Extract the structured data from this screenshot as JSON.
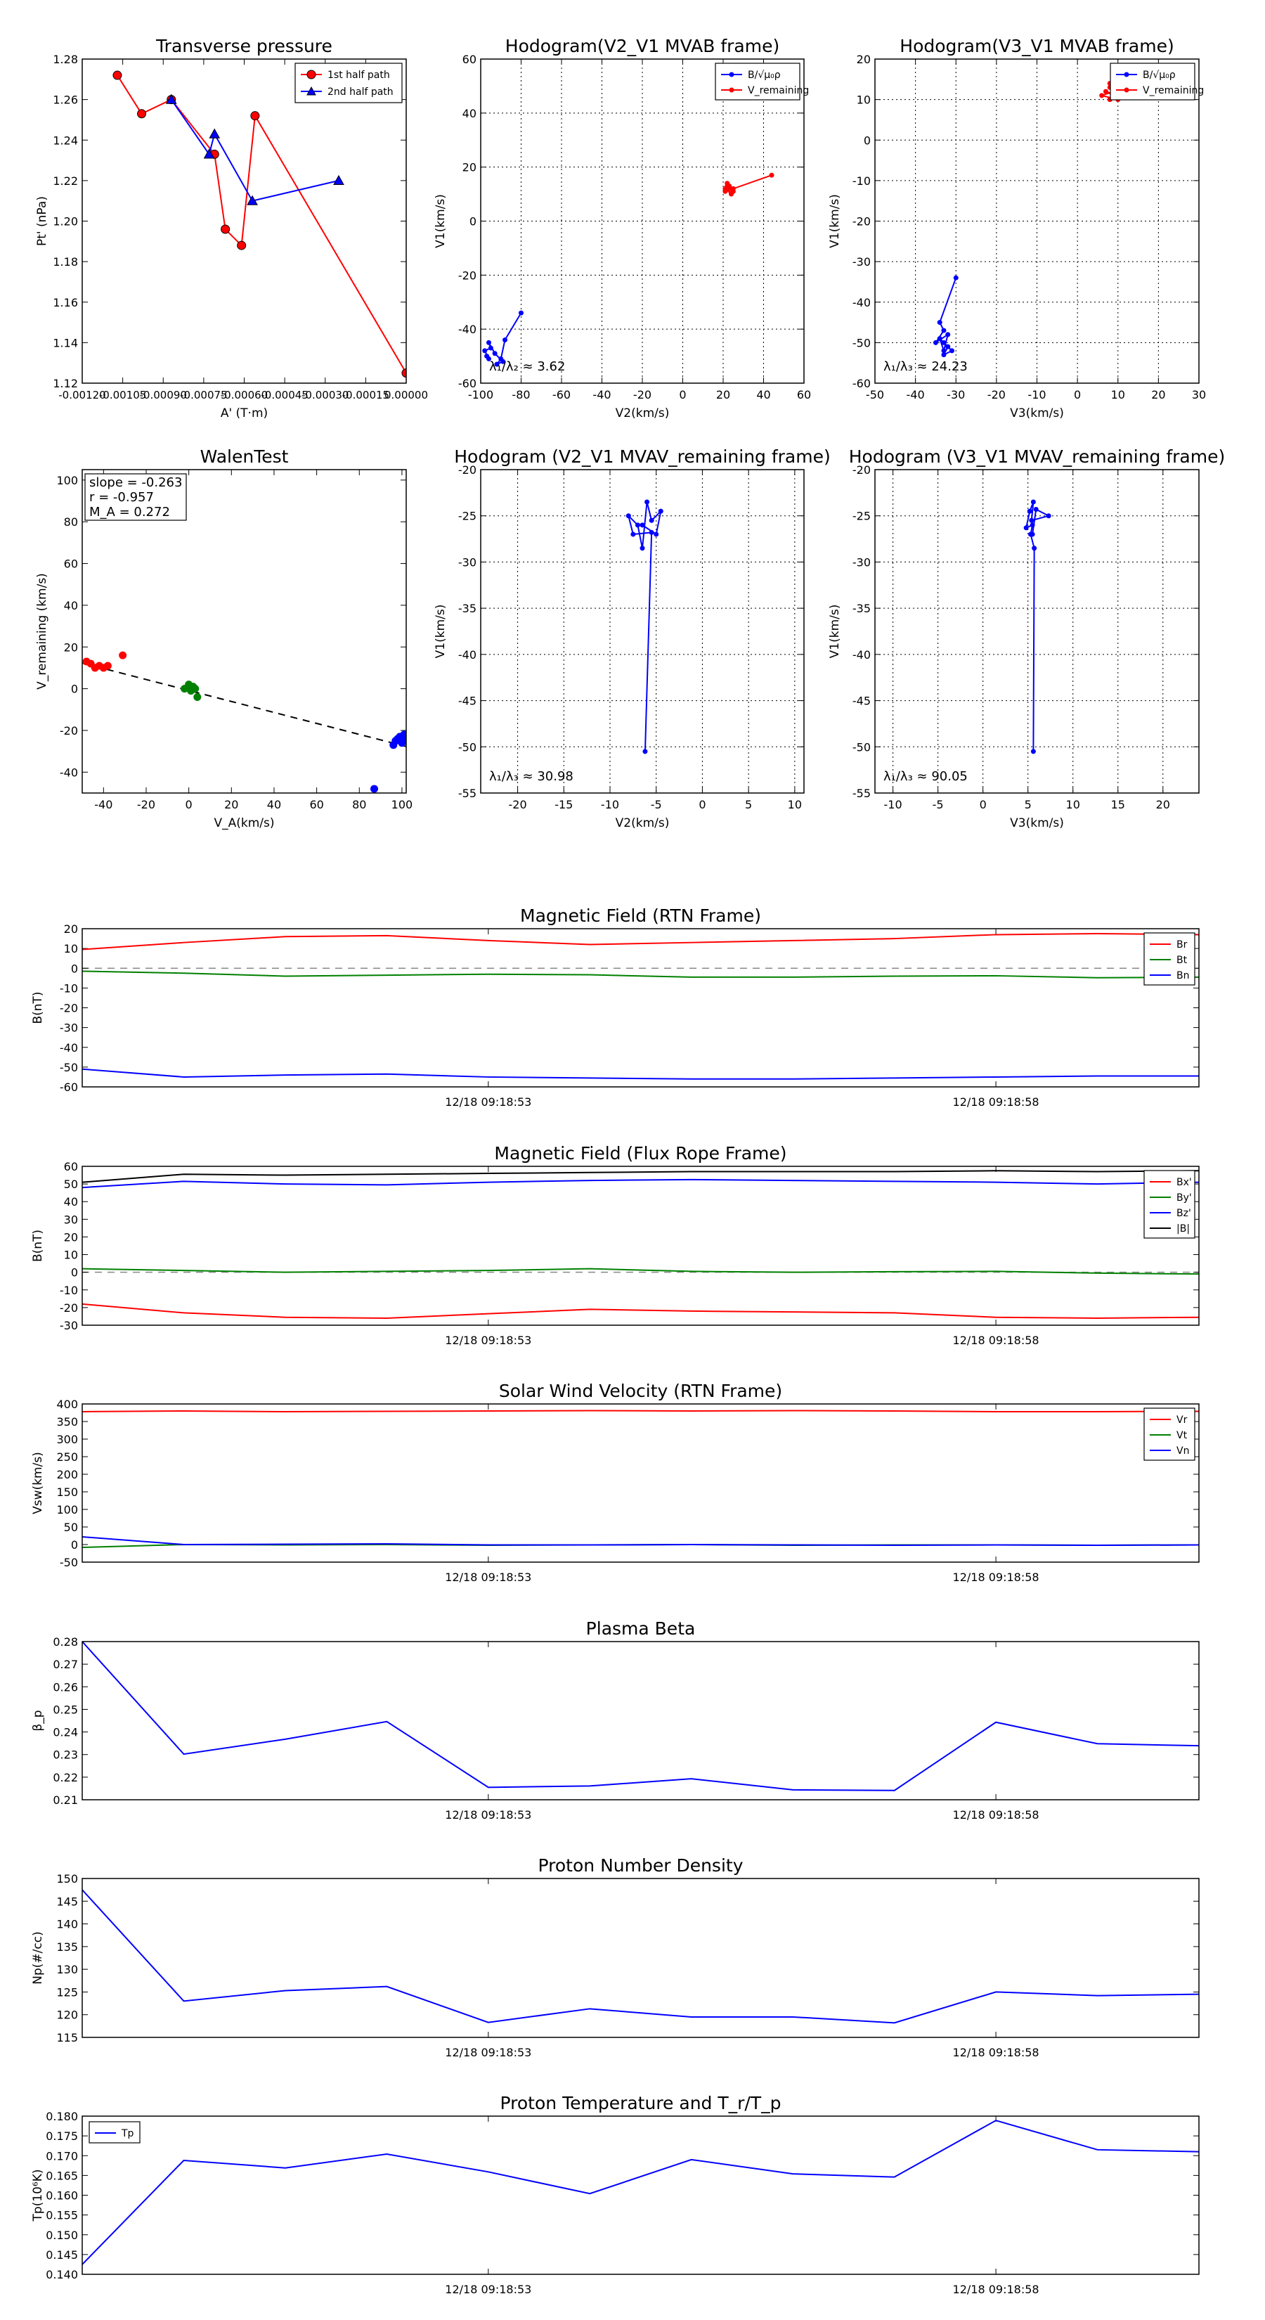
{
  "chart_data": [
    {
      "id": "transverse",
      "type": "line",
      "title": "Transverse pressure",
      "xlabel": "A' (T·m)",
      "ylabel": "Pt' (nPa)",
      "xlim": [
        -0.0012,
        0.0
      ],
      "ylim": [
        1.12,
        1.28
      ],
      "xticks": [
        -0.0012,
        -0.00105,
        -0.0009,
        -0.00075,
        -0.0006,
        -0.00045,
        -0.0003,
        -0.00015,
        0.0
      ],
      "xticklabels": [
        "-0.00120",
        "-0.00105",
        "-0.00090",
        "-0.00075",
        "-0.00060",
        "-0.00045",
        "-0.00030",
        "-0.00015",
        "0.00000"
      ],
      "yticks": [
        1.12,
        1.14,
        1.16,
        1.18,
        1.2,
        1.22,
        1.24,
        1.26,
        1.28
      ],
      "yticklabels": [
        "1.12",
        "1.14",
        "1.16",
        "1.18",
        "1.20",
        "1.22",
        "1.24",
        "1.26",
        "1.28"
      ],
      "grid": false,
      "legend_position": "top-right",
      "series": [
        {
          "name": "1st half path",
          "color": "#ff0000",
          "marker": "circle",
          "x": [
            -0.00107,
            -0.00098,
            -0.00087,
            -0.00071,
            -0.00067,
            -0.00061,
            -0.00056,
            0.0
          ],
          "y": [
            1.272,
            1.253,
            1.26,
            1.233,
            1.196,
            1.188,
            1.252,
            1.125
          ]
        },
        {
          "name": "2nd half path",
          "color": "#0000ff",
          "marker": "triangle",
          "x": [
            -0.00087,
            -0.00073,
            -0.00071,
            -0.00057,
            -0.00025
          ],
          "y": [
            1.26,
            1.233,
            1.243,
            1.21,
            1.22
          ]
        }
      ]
    },
    {
      "id": "hodo_v2v1",
      "type": "line",
      "title": "Hodogram(V2_V1 MVAB frame)",
      "xlabel": "V2(km/s)",
      "ylabel": "V1(km/s)",
      "xlim": [
        -100,
        60
      ],
      "ylim": [
        -60,
        60
      ],
      "xticks": [
        -100,
        -80,
        -60,
        -40,
        -20,
        0,
        20,
        40,
        60
      ],
      "yticks": [
        -60,
        -40,
        -20,
        0,
        20,
        40,
        60
      ],
      "grid": true,
      "legend_position": "top-right",
      "annotation": "λ₁/λ₂ ≈ 3.62",
      "series": [
        {
          "name": "B/√μ₀ρ",
          "color": "#0000ff",
          "x": [
            -80,
            -88,
            -90,
            -92,
            -89,
            -93,
            -96,
            -95,
            -98,
            -96,
            -97
          ],
          "y": [
            -34,
            -44,
            -51,
            -53,
            -52,
            -49,
            -45,
            -47,
            -48,
            -51,
            -50
          ]
        },
        {
          "name": "V_remaining",
          "color": "#ff0000",
          "x": [
            44,
            25,
            22,
            24,
            21,
            23,
            25,
            22,
            21,
            23
          ],
          "y": [
            17,
            12,
            14,
            10,
            12,
            13,
            11,
            13,
            11,
            12
          ]
        }
      ]
    },
    {
      "id": "hodo_v3v1",
      "type": "line",
      "title": "Hodogram(V3_V1 MVAB frame)",
      "xlabel": "V3(km/s)",
      "ylabel": "V1(km/s)",
      "xlim": [
        -50,
        30
      ],
      "ylim": [
        -60,
        20
      ],
      "xticks": [
        -50,
        -40,
        -30,
        -20,
        -10,
        0,
        10,
        20,
        30
      ],
      "yticks": [
        -60,
        -50,
        -40,
        -30,
        -20,
        -10,
        0,
        10,
        20
      ],
      "grid": true,
      "legend_position": "top-right",
      "annotation": "λ₁/λ₃ ≈ 24.23",
      "series": [
        {
          "name": "B/√μ₀ρ",
          "color": "#0000ff",
          "x": [
            -30,
            -34,
            -33,
            -35,
            -32,
            -33,
            -34,
            -32,
            -33,
            -31,
            -33
          ],
          "y": [
            -34,
            -45,
            -47,
            -50,
            -48,
            -52,
            -49,
            -51,
            -53,
            -52,
            -50
          ]
        },
        {
          "name": "V_remaining",
          "color": "#ff0000",
          "x": [
            8,
            9,
            6,
            10,
            8,
            9,
            7,
            10,
            8
          ],
          "y": [
            14,
            12,
            11,
            10,
            13,
            11,
            12,
            11,
            10
          ]
        }
      ]
    },
    {
      "id": "walen",
      "type": "scatter",
      "title": "WalenTest",
      "xlabel": "V_A(km/s)",
      "ylabel": "V_remaining (km/s)",
      "xlim": [
        -50,
        102
      ],
      "ylim": [
        -50,
        105
      ],
      "xticks": [
        -40,
        -20,
        0,
        20,
        40,
        60,
        80,
        100
      ],
      "yticks": [
        -40,
        -20,
        0,
        20,
        40,
        60,
        80,
        100
      ],
      "grid": false,
      "annotation_lines": [
        "slope = -0.263",
        "r = -0.957",
        "M_A = 0.272"
      ],
      "fit_line": {
        "x": [
          -50,
          102
        ],
        "y": [
          12.3,
          -27.7
        ]
      },
      "series": [
        {
          "name": "red",
          "color": "#ff0000",
          "x": [
            -48,
            -46,
            -44,
            -42,
            -40,
            -38,
            -31
          ],
          "y": [
            13,
            12,
            10,
            11,
            10,
            11,
            16
          ]
        },
        {
          "name": "green",
          "color": "#008000",
          "x": [
            -2,
            0,
            2,
            1,
            3,
            4
          ],
          "y": [
            0,
            2,
            1,
            -1,
            0,
            -4
          ]
        },
        {
          "name": "blue",
          "color": "#0000ff",
          "x": [
            87,
            96,
            98,
            100,
            101,
            102,
            99,
            97
          ],
          "y": [
            -48,
            -27,
            -24,
            -26,
            -22,
            -25,
            -23,
            -25
          ]
        }
      ]
    },
    {
      "id": "hodo_rem_v2v1",
      "type": "line",
      "title": "Hodogram (V2_V1 MVAV_remaining frame)",
      "xlabel": "V2(km/s)",
      "ylabel": "V1(km/s)",
      "xlim": [
        -24,
        11
      ],
      "ylim": [
        -55,
        -20
      ],
      "xticks": [
        -20,
        -15,
        -10,
        -5,
        0,
        5,
        10
      ],
      "yticks": [
        -55,
        -50,
        -45,
        -40,
        -35,
        -30,
        -25,
        -20
      ],
      "grid": true,
      "annotation": "λ₁/λ₃ ≈ 30.98",
      "series": [
        {
          "name": "B",
          "color": "#0000ff",
          "x": [
            -6.2,
            -5.5,
            -7.5,
            -8,
            -7,
            -6.5,
            -6,
            -5.5,
            -4.5,
            -5,
            -6.5
          ],
          "y": [
            -50.5,
            -26.8,
            -27,
            -25,
            -26,
            -28.5,
            -23.5,
            -25.5,
            -24.5,
            -27,
            -26
          ]
        }
      ]
    },
    {
      "id": "hodo_rem_v3v1",
      "type": "line",
      "title": "Hodogram (V3_V1 MVAV_remaining frame)",
      "xlabel": "V3(km/s)",
      "ylabel": "V1(km/s)",
      "xlim": [
        -12,
        24
      ],
      "ylim": [
        -55,
        -20
      ],
      "xticks": [
        -10,
        -5,
        0,
        5,
        10,
        15,
        20
      ],
      "yticks": [
        -55,
        -50,
        -45,
        -40,
        -35,
        -30,
        -25,
        -20
      ],
      "grid": true,
      "annotation": "λ₁/λ₃ ≈ 90.05",
      "series": [
        {
          "name": "B",
          "color": "#0000ff",
          "x": [
            5.6,
            5.7,
            5.3,
            5.5,
            4.8,
            5.2,
            5.6,
            5.4,
            7.3,
            5.9,
            5.5
          ],
          "y": [
            -50.5,
            -28.5,
            -27,
            -26,
            -26.3,
            -24.5,
            -23.5,
            -25.5,
            -25,
            -24.3,
            -27
          ]
        }
      ]
    },
    {
      "id": "mag_rtn",
      "type": "line",
      "title": "Magnetic Field (RTN Frame)",
      "ylabel": "B(nT)",
      "ylim": [
        -60,
        20
      ],
      "yticks": [
        -60,
        -50,
        -40,
        -30,
        -20,
        -10,
        0,
        10,
        20
      ],
      "xticklabels": [
        "12/18 09:18:53",
        "12/18 09:18:58"
      ],
      "xtick_index": [
        4,
        9
      ],
      "zero_line": true,
      "legend_position": "top-right",
      "series": [
        {
          "name": "Br",
          "color": "#ff0000",
          "values": [
            9.5,
            13,
            16,
            16.5,
            14,
            12,
            13,
            14,
            15,
            17,
            17.5,
            17
          ]
        },
        {
          "name": "Bt",
          "color": "#008000",
          "values": [
            -1.5,
            -2.5,
            -4,
            -3.5,
            -3,
            -3.3,
            -4.5,
            -4.5,
            -4,
            -3.8,
            -4.8,
            -4.5
          ]
        },
        {
          "name": "Bn",
          "color": "#0000ff",
          "values": [
            -51,
            -55,
            -54,
            -53.5,
            -55,
            -55.5,
            -56,
            -56,
            -55.5,
            -55,
            -54.5,
            -54.5
          ]
        }
      ]
    },
    {
      "id": "mag_flux",
      "type": "line",
      "title": "Magnetic Field (Flux Rope Frame)",
      "ylabel": "B(nT)",
      "ylim": [
        -30,
        60
      ],
      "yticks": [
        -30,
        -20,
        -10,
        0,
        10,
        20,
        30,
        40,
        50,
        60
      ],
      "xticklabels": [
        "12/18 09:18:53",
        "12/18 09:18:58"
      ],
      "xtick_index": [
        4,
        9
      ],
      "zero_line": true,
      "legend_position": "top-right",
      "series": [
        {
          "name": "Bx'",
          "color": "#ff0000",
          "values": [
            -18,
            -23,
            -25.5,
            -26,
            -23.5,
            -21,
            -22,
            -22.5,
            -23,
            -25.5,
            -26,
            -25.5
          ]
        },
        {
          "name": "By'",
          "color": "#008000",
          "values": [
            2,
            1,
            0,
            0.5,
            1,
            2,
            0.5,
            0,
            0.3,
            0.5,
            -0.5,
            -1
          ]
        },
        {
          "name": "Bz'",
          "color": "#0000ff",
          "values": [
            48,
            51.5,
            50,
            49.5,
            51,
            52,
            52.5,
            52,
            51.5,
            51,
            50,
            51
          ]
        },
        {
          "name": "|B|",
          "color": "#000000",
          "values": [
            51,
            55.5,
            55,
            55.5,
            56,
            56.5,
            57,
            57,
            57,
            57.5,
            57,
            57.5
          ]
        }
      ]
    },
    {
      "id": "velocity",
      "type": "line",
      "title": "Solar Wind Velocity (RTN Frame)",
      "ylabel": "Vsw(km/s)",
      "ylim": [
        -50,
        400
      ],
      "yticks": [
        -50,
        0,
        50,
        100,
        150,
        200,
        250,
        300,
        350,
        400
      ],
      "xticklabels": [
        "12/18 09:18:53",
        "12/18 09:18:58"
      ],
      "xtick_index": [
        4,
        9
      ],
      "legend_position": "top-right",
      "series": [
        {
          "name": "Vr",
          "color": "#ff0000",
          "values": [
            378,
            380,
            378,
            379,
            380,
            381,
            380,
            381,
            380,
            378,
            378,
            379
          ]
        },
        {
          "name": "Vt",
          "color": "#008000",
          "values": [
            -8,
            0,
            -1,
            0,
            -2,
            -1,
            0,
            -2,
            -1,
            -1,
            -2,
            -1
          ]
        },
        {
          "name": "Vn",
          "color": "#0000ff",
          "values": [
            22,
            0,
            1,
            2,
            -1,
            -1,
            0,
            -1,
            -2,
            -1,
            -2,
            -1
          ]
        }
      ]
    },
    {
      "id": "beta",
      "type": "line",
      "title": "Plasma Beta",
      "ylabel": "β_p",
      "ylim": [
        0.21,
        0.28
      ],
      "yticks": [
        0.21,
        0.22,
        0.23,
        0.24,
        0.25,
        0.26,
        0.27,
        0.28
      ],
      "yticklabels": [
        "0.21",
        "0.22",
        "0.23",
        "0.24",
        "0.25",
        "0.26",
        "0.27",
        "0.28"
      ],
      "xticklabels": [
        "12/18 09:18:53",
        "12/18 09:18:58"
      ],
      "xtick_index": [
        4,
        9
      ],
      "series": [
        {
          "name": "beta",
          "color": "#0000ff",
          "values": [
            0.28,
            0.2302,
            0.2368,
            0.2446,
            0.2155,
            0.2161,
            0.2193,
            0.2144,
            0.2141,
            0.2443,
            0.2348,
            0.2339
          ]
        }
      ]
    },
    {
      "id": "density",
      "type": "line",
      "title": "Proton Number Density",
      "ylabel": "Np(#/cc)",
      "ylim": [
        115,
        150
      ],
      "yticks": [
        115,
        120,
        125,
        130,
        135,
        140,
        145,
        150
      ],
      "xticklabels": [
        "12/18 09:18:53",
        "12/18 09:18:58"
      ],
      "xtick_index": [
        4,
        9
      ],
      "series": [
        {
          "name": "Np",
          "color": "#0000ff",
          "values": [
            147.5,
            123,
            125.3,
            126.2,
            118.3,
            121.3,
            119.5,
            119.5,
            118.2,
            125,
            124.2,
            124.5
          ]
        }
      ]
    },
    {
      "id": "temperature",
      "type": "line",
      "title": "Proton Temperature and T_r/T_p",
      "ylabel": "Tp(10⁶K)",
      "ylim": [
        0.14,
        0.18
      ],
      "yticks": [
        0.14,
        0.145,
        0.15,
        0.155,
        0.16,
        0.165,
        0.17,
        0.175,
        0.18
      ],
      "yticklabels": [
        "0.140",
        "0.145",
        "0.150",
        "0.155",
        "0.160",
        "0.165",
        "0.170",
        "0.175",
        "0.180"
      ],
      "xticklabels": [
        "12/18 09:18:53",
        "12/18 09:18:58"
      ],
      "xtick_index": [
        4,
        9
      ],
      "legend_position": "top-left",
      "series": [
        {
          "name": "Tp",
          "color": "#0000ff",
          "values": [
            0.1425,
            0.1688,
            0.1669,
            0.1704,
            0.1659,
            0.1604,
            0.169,
            0.1654,
            0.1646,
            0.1789,
            0.1715,
            0.171
          ]
        }
      ]
    }
  ]
}
